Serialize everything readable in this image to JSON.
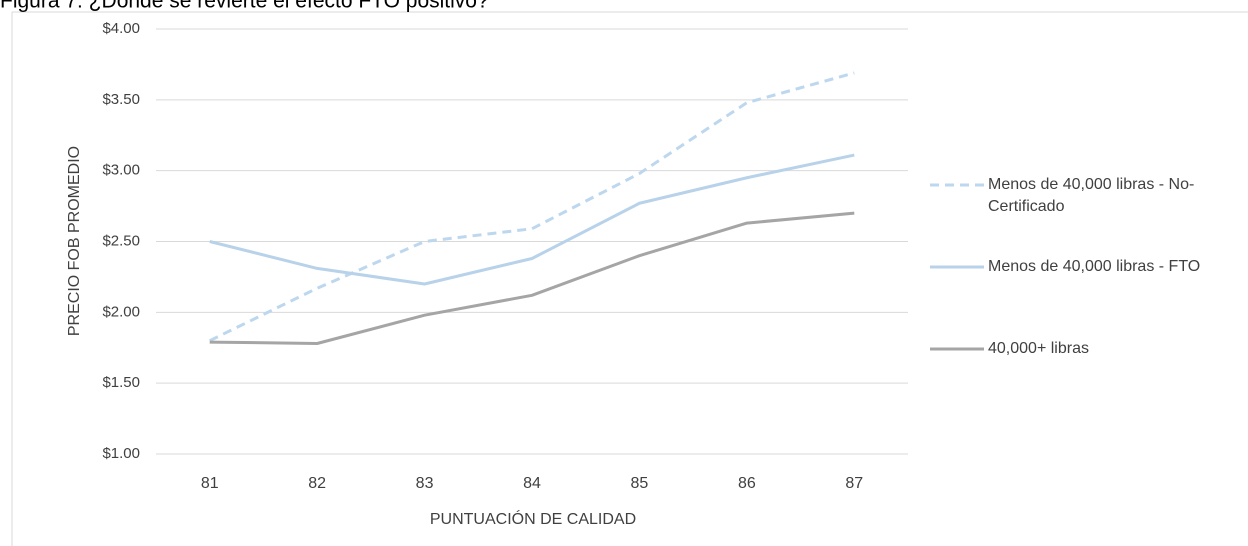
{
  "chart_data": {
    "type": "line",
    "title": "Figura 7: ¿Dónde se revierte el efecto FTO positivo?",
    "x_label": "PUNTUACIÓN DE CALIDAD",
    "y_label": "PRECIO FOB PROMEDIO",
    "categories": [
      "81",
      "82",
      "83",
      "84",
      "85",
      "86",
      "87"
    ],
    "series": [
      {
        "name": "Menos de 40,000 libras - No-Certificado",
        "color": "#bdd7ee",
        "dashed": true,
        "values": [
          1.8,
          2.17,
          2.5,
          2.59,
          2.98,
          3.48,
          3.69
        ]
      },
      {
        "name": "Menos de 40,000 libras - FTO",
        "color": "#b8d2ea",
        "dashed": false,
        "values": [
          2.5,
          2.31,
          2.2,
          2.38,
          2.77,
          2.95,
          3.11
        ]
      },
      {
        "name": "40,000+ libras",
        "color": "#a5a5a5",
        "dashed": false,
        "values": [
          1.79,
          1.78,
          1.98,
          2.12,
          2.4,
          2.63,
          2.7
        ]
      }
    ],
    "ylim": [
      1,
      4
    ],
    "yticks": [
      {
        "value": 1,
        "label": "$1.00"
      },
      {
        "value": 1.5,
        "label": "$1.50"
      },
      {
        "value": 2,
        "label": "$2.00"
      },
      {
        "value": 2.5,
        "label": "$2.50"
      },
      {
        "value": 3,
        "label": "$3.00"
      },
      {
        "value": 3.5,
        "label": "$3.50"
      },
      {
        "value": 4,
        "label": "$4.00"
      }
    ],
    "grid": true,
    "legend": "right"
  }
}
